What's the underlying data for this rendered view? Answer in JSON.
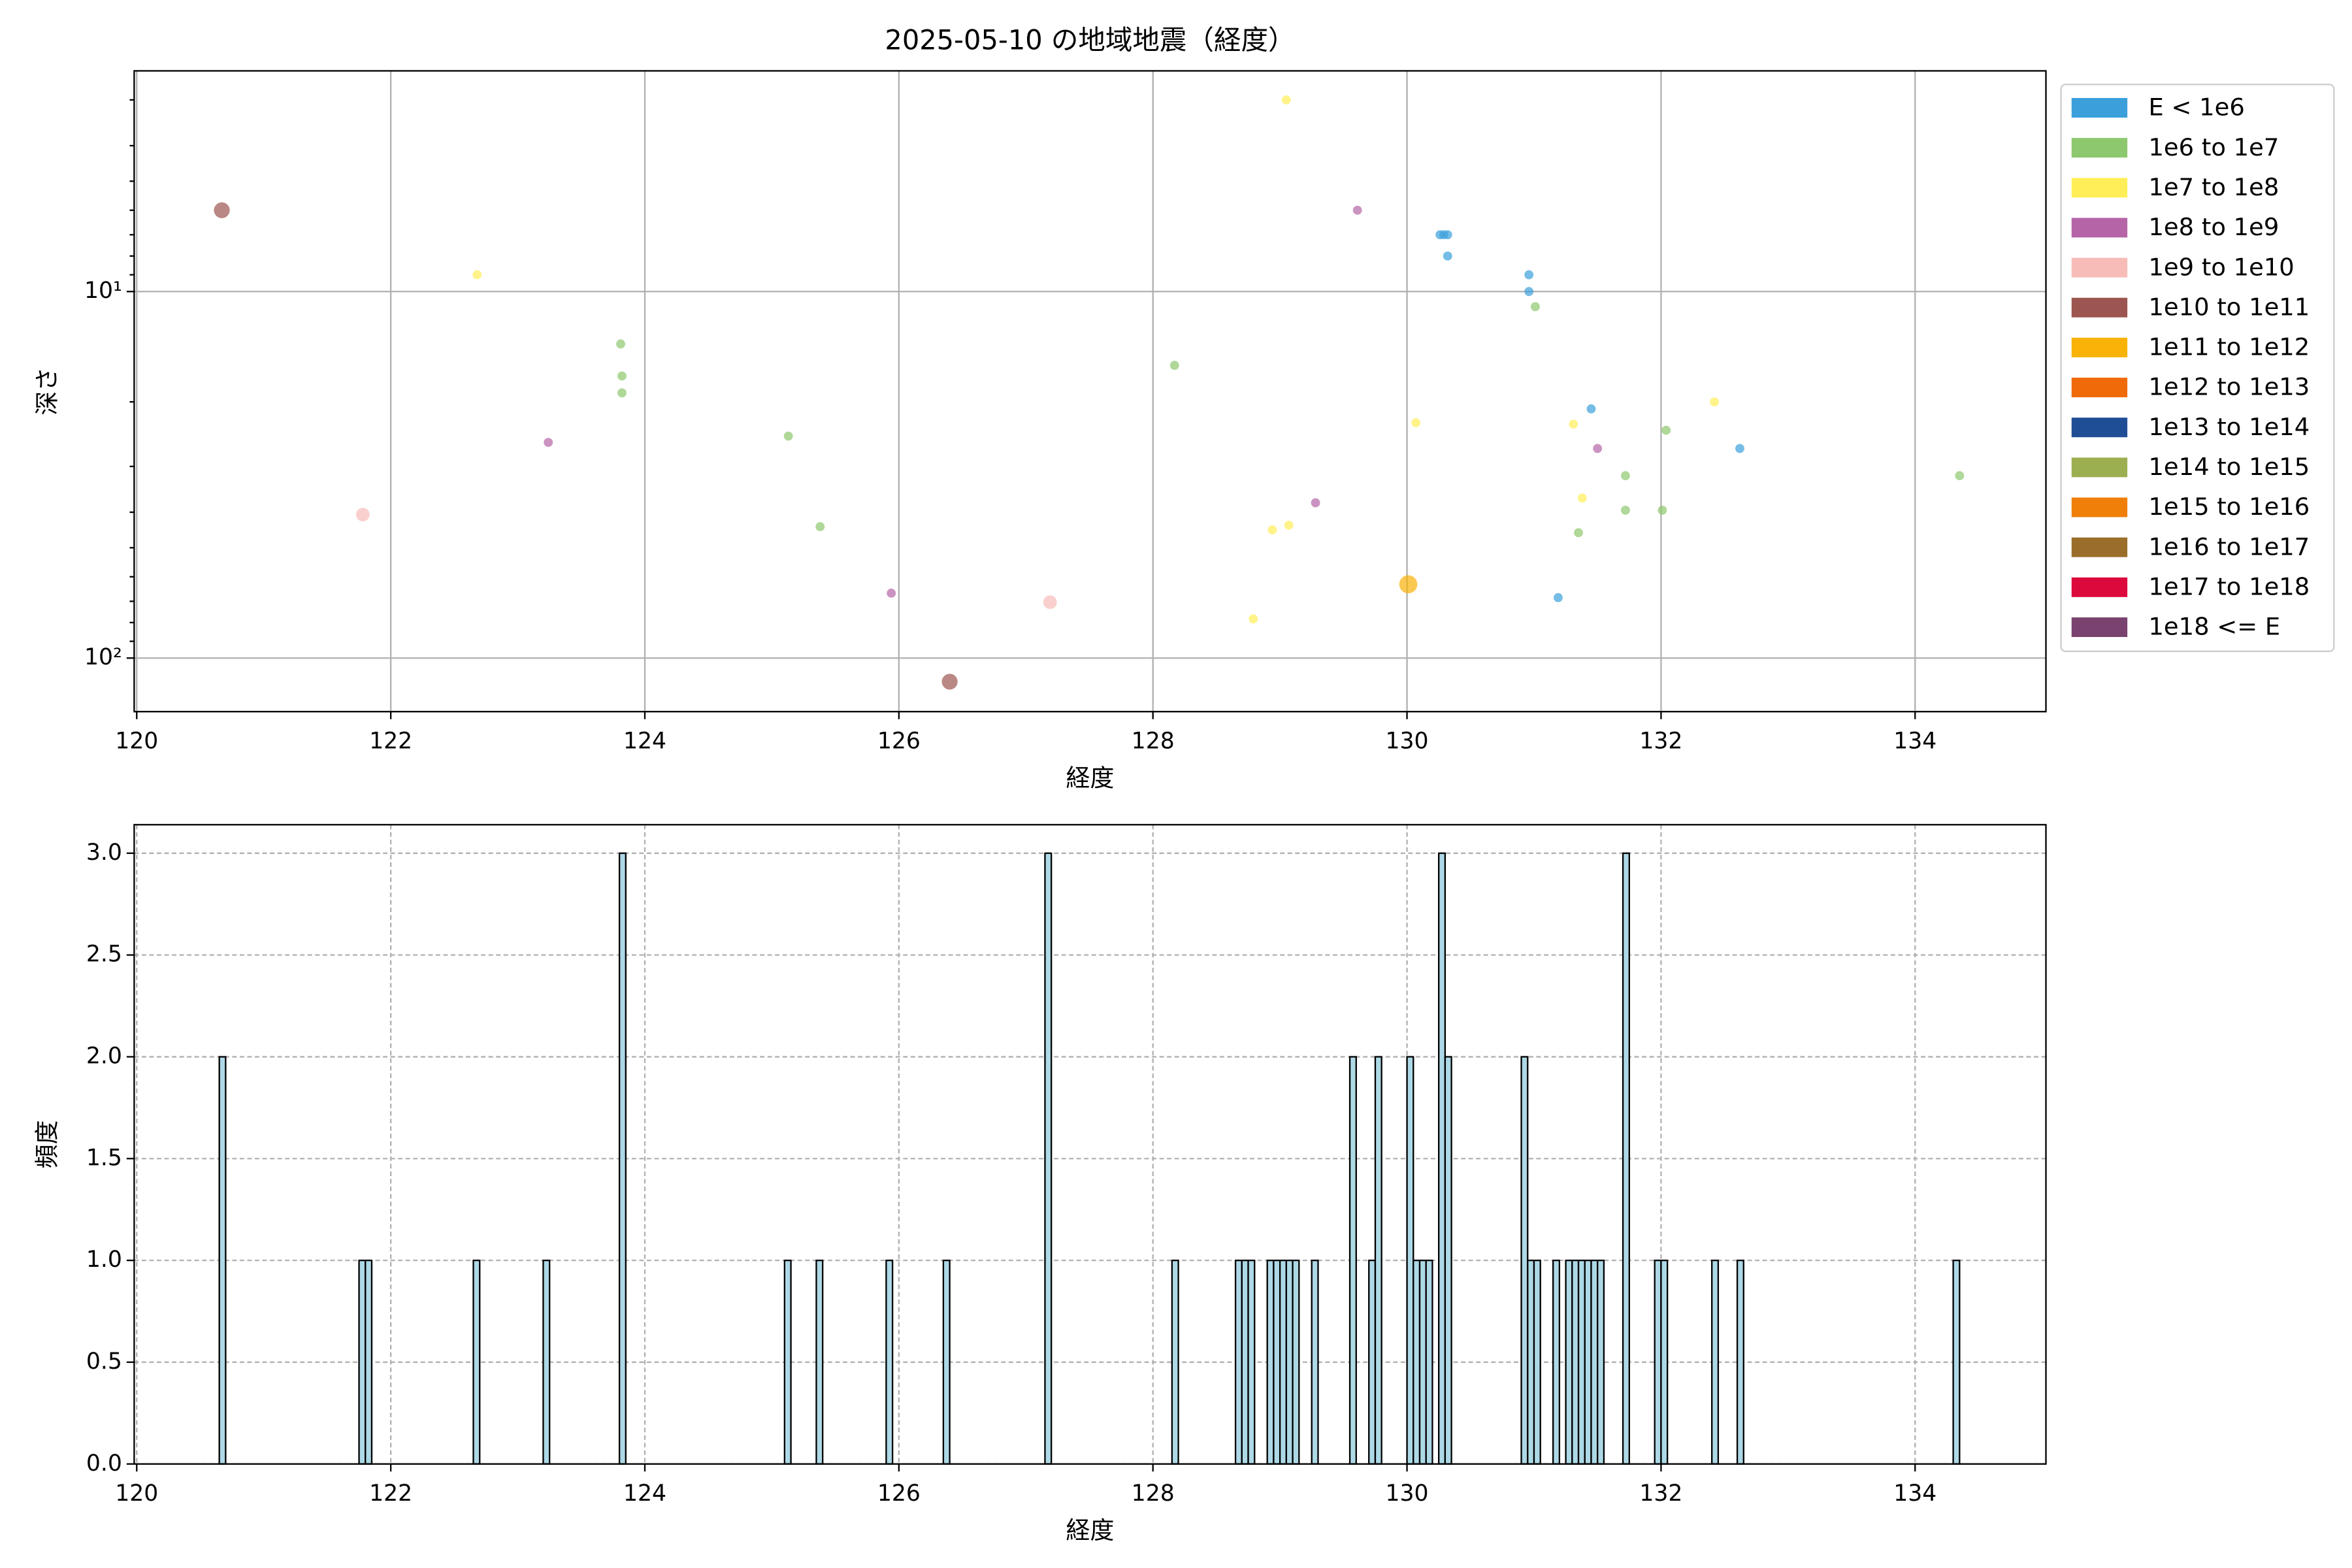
{
  "chart_data": [
    {
      "type": "scatter",
      "title": "2025-05-10 の地域地震（経度）",
      "x_label": "経度",
      "y_label": "深さ",
      "xlim": [
        119.98,
        135.03
      ],
      "xticks": [
        120,
        122,
        124,
        126,
        128,
        130,
        132,
        134
      ],
      "ylim": [
        2.5,
        140
      ],
      "y_log": true,
      "y_inverted": true,
      "yticks": [
        {
          "value": 10,
          "label": "10¹"
        },
        {
          "value": 100,
          "label": "10²"
        }
      ],
      "yminorticks": [
        3,
        4,
        5,
        6,
        7,
        8,
        9,
        20,
        30,
        40,
        50,
        60,
        70,
        80,
        90
      ],
      "grid": true,
      "grid_linestyle": "solid",
      "legend": "outside upper right",
      "opacity": 0.7,
      "series": [
        {
          "name": "E < 1e6",
          "color": "#3a9fdb",
          "x": [
            130.26,
            130.29,
            130.32,
            130.32,
            130.96,
            130.96,
            131.19,
            131.45,
            132.62
          ],
          "values": [
            7.0,
            7.0,
            7.0,
            8.0,
            9.0,
            10.0,
            68.4,
            20.9,
            26.8
          ]
        },
        {
          "name": "1e6 to 1e7",
          "color": "#8dc86e",
          "x": [
            123.81,
            123.82,
            123.82,
            125.13,
            125.38,
            128.17,
            131.01,
            131.35,
            131.72,
            131.72,
            132.01,
            132.04,
            134.35
          ],
          "values": [
            13.9,
            17.0,
            18.9,
            24.8,
            43.8,
            15.9,
            11.0,
            45.5,
            31.8,
            39.5,
            39.5,
            23.9,
            31.8
          ]
        },
        {
          "name": "1e7 to 1e8",
          "color": "#ffee58",
          "x": [
            122.68,
            128.79,
            128.94,
            129.07,
            129.05,
            130.07,
            131.31,
            131.38,
            132.42
          ],
          "values": [
            9.0,
            78.2,
            44.7,
            43.4,
            3.0,
            22.8,
            23.0,
            36.6,
            20.0
          ]
        },
        {
          "name": "1e8 to 1e9",
          "color": "#b565a7",
          "x": [
            123.24,
            125.94,
            129.28,
            129.61,
            131.5
          ],
          "values": [
            25.8,
            66.5,
            37.7,
            6.0,
            26.8
          ]
        },
        {
          "name": "1e9 to 1e10",
          "color": "#f7bcb8",
          "x": [
            121.78,
            127.19
          ],
          "values": [
            40.6,
            70.4
          ]
        },
        {
          "name": "1e10 to 1e11",
          "color": "#9c5550",
          "x": [
            120.67,
            126.4
          ],
          "values": [
            6.0,
            116
          ]
        },
        {
          "name": "1e11 to 1e12",
          "color": "#f9b208",
          "x": [
            130.01
          ],
          "values": [
            62.9
          ]
        },
        {
          "name": "1e12 to 1e13",
          "color": "#f06a0a",
          "x": [],
          "values": []
        },
        {
          "name": "1e13 to 1e14",
          "color": "#1f4e96",
          "x": [],
          "values": []
        },
        {
          "name": "1e14 to 1e15",
          "color": "#9caf50",
          "x": [],
          "values": []
        },
        {
          "name": "1e15 to 1e16",
          "color": "#f07f0a",
          "x": [],
          "values": []
        },
        {
          "name": "1e16 to 1e17",
          "color": "#9a6e2a",
          "x": [],
          "values": []
        },
        {
          "name": "1e17 to 1e18",
          "color": "#dc0a3c",
          "x": [],
          "values": []
        },
        {
          "name": "1e18 <= E",
          "color": "#7a426e",
          "x": [],
          "values": []
        }
      ]
    },
    {
      "type": "histogram",
      "x_label": "経度",
      "y_label": "頻度",
      "xlim": [
        119.98,
        135.03
      ],
      "xticks": [
        120,
        122,
        124,
        126,
        128,
        130,
        132,
        134
      ],
      "ylim": [
        0,
        3.14
      ],
      "yticks": [
        {
          "value": 0,
          "label": "0.0"
        },
        0.5,
        {
          "value": 1,
          "label": "1.0"
        },
        1.5,
        {
          "value": 2,
          "label": "2.0"
        },
        2.5,
        {
          "value": 3,
          "label": "3.0"
        }
      ],
      "grid": true,
      "grid_linestyle": "dashed",
      "color": "#add8e6",
      "edgecolor": "#000000",
      "bins": [
        120.65,
        120.7,
        120.75,
        120.8,
        120.85,
        120.9,
        120.95,
        121,
        121.05,
        121.1,
        121.15,
        121.2,
        121.25,
        121.3,
        121.35,
        121.4,
        121.45,
        121.5,
        121.55,
        121.6,
        121.65,
        121.7,
        121.75,
        121.8,
        121.85,
        121.9,
        121.95,
        122,
        122.05,
        122.1,
        122.15,
        122.2,
        122.25,
        122.3,
        122.35,
        122.4,
        122.45,
        122.5,
        122.55,
        122.6,
        122.65,
        122.7,
        122.75,
        122.8,
        122.85,
        122.9,
        122.95,
        123,
        123.05,
        123.1,
        123.15,
        123.2,
        123.25,
        123.3,
        123.35,
        123.4,
        123.45,
        123.5,
        123.55,
        123.6,
        123.65,
        123.7,
        123.75,
        123.8,
        123.85,
        123.9,
        123.95,
        124,
        124.05,
        124.1,
        124.15,
        124.2,
        124.25,
        124.3,
        124.35,
        124.4,
        124.45,
        124.5,
        124.55,
        124.6,
        124.65,
        124.7,
        124.75,
        124.8,
        124.85,
        124.9,
        124.95,
        125,
        125.05,
        125.1,
        125.15,
        125.2,
        125.25,
        125.3,
        125.35,
        125.4,
        125.45,
        125.5,
        125.55,
        125.6,
        125.65,
        125.7,
        125.75,
        125.8,
        125.85,
        125.9,
        125.95,
        126,
        126.05,
        126.1,
        126.15,
        126.2,
        126.25,
        126.3,
        126.35,
        126.4,
        126.45,
        126.5,
        126.55,
        126.6,
        126.65,
        126.7,
        126.75,
        126.8,
        126.85,
        126.9,
        126.95,
        127,
        127.05,
        127.1,
        127.15,
        127.2,
        127.25,
        127.3,
        127.35,
        127.4,
        127.45,
        127.5,
        127.55,
        127.6,
        127.65,
        127.7,
        127.75,
        127.8,
        127.85,
        127.9,
        127.95,
        128,
        128.05,
        128.1,
        128.15,
        128.2,
        128.25,
        128.3,
        128.35,
        128.4,
        128.45,
        128.5,
        128.55,
        128.6,
        128.65,
        128.7,
        128.75,
        128.8,
        128.85,
        128.9,
        128.95,
        129,
        129.05,
        129.1,
        129.15,
        129.2,
        129.25,
        129.3,
        129.35,
        129.4,
        129.45,
        129.5,
        129.55,
        129.6,
        129.65,
        129.7,
        129.75,
        129.8,
        129.85,
        129.9,
        129.95,
        130,
        130.05,
        130.1,
        130.15,
        130.2,
        130.25,
        130.3,
        130.35,
        130.4,
        130.45,
        130.5,
        130.55,
        130.6,
        130.65,
        130.7,
        130.75,
        130.8,
        130.85,
        130.9,
        130.95,
        131,
        131.05,
        131.1,
        131.15,
        131.2,
        131.25,
        131.3,
        131.35,
        131.4,
        131.45,
        131.5,
        131.55,
        131.6,
        131.65,
        131.7,
        131.75,
        131.8,
        131.85,
        131.9,
        131.95,
        132,
        132.05,
        132.1,
        132.15,
        132.2,
        132.25,
        132.3,
        132.35,
        132.4,
        132.45,
        132.5,
        132.55,
        132.6,
        132.65,
        132.7,
        132.75,
        132.8,
        132.85,
        132.9,
        132.95,
        133,
        133.05,
        133.1,
        133.15,
        133.2,
        133.25,
        133.3,
        133.35,
        133.4,
        133.45,
        133.5,
        133.55,
        133.6,
        133.65,
        133.7,
        133.75,
        133.8,
        133.85,
        133.9,
        133.95,
        134,
        134.05,
        134.1,
        134.15,
        134.2,
        134.25,
        134.3,
        134.35
      ],
      "values": [
        2,
        0,
        0,
        0,
        0,
        0,
        0,
        0,
        0,
        0,
        0,
        0,
        0,
        0,
        0,
        0,
        0,
        0,
        0,
        0,
        0,
        0,
        1,
        1,
        0,
        0,
        0,
        0,
        0,
        0,
        0,
        0,
        0,
        0,
        0,
        0,
        0,
        0,
        0,
        0,
        1,
        0,
        0,
        0,
        0,
        0,
        0,
        0,
        0,
        0,
        0,
        1,
        0,
        0,
        0,
        0,
        0,
        0,
        0,
        0,
        0,
        0,
        0,
        3,
        0,
        0,
        0,
        0,
        0,
        0,
        0,
        0,
        0,
        0,
        0,
        0,
        0,
        0,
        0,
        0,
        0,
        0,
        0,
        0,
        0,
        0,
        0,
        0,
        0,
        1,
        0,
        0,
        0,
        0,
        1,
        0,
        0,
        0,
        0,
        0,
        0,
        0,
        0,
        0,
        0,
        1,
        0,
        0,
        0,
        0,
        0,
        0,
        0,
        0,
        1,
        0,
        0,
        0,
        0,
        0,
        0,
        0,
        0,
        0,
        0,
        0,
        0,
        0,
        0,
        0,
        3,
        0,
        0,
        0,
        0,
        0,
        0,
        0,
        0,
        0,
        0,
        0,
        0,
        0,
        0,
        0,
        0,
        0,
        0,
        0,
        1,
        0,
        0,
        0,
        0,
        0,
        0,
        0,
        0,
        0,
        1,
        1,
        1,
        0,
        0,
        1,
        1,
        1,
        1,
        1,
        0,
        0,
        1,
        0,
        0,
        0,
        0,
        0,
        2,
        0,
        0,
        1,
        2,
        0,
        0,
        0,
        0,
        2,
        1,
        1,
        1,
        0,
        3,
        2,
        0,
        0,
        0,
        0,
        0,
        0,
        0,
        0,
        0,
        0,
        0,
        2,
        1,
        1,
        0,
        0,
        1,
        0,
        1,
        1,
        1,
        1,
        1,
        1,
        0,
        0,
        0,
        3,
        0,
        0,
        0,
        0,
        1,
        1,
        0,
        0,
        0,
        0,
        0,
        0,
        0,
        1,
        0,
        0,
        0,
        1,
        0,
        0,
        0,
        0,
        0,
        0,
        0,
        0,
        0,
        0,
        0,
        0,
        0,
        0,
        0,
        0,
        0,
        0,
        0,
        0,
        0,
        0,
        0,
        0,
        0,
        0,
        0,
        0,
        0,
        0,
        0,
        0,
        0,
        1
      ]
    }
  ]
}
